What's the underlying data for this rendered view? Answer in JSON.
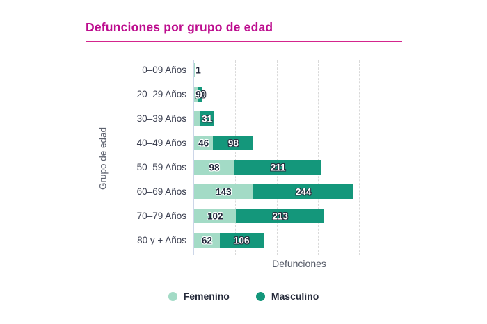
{
  "title": "Defunciones por grupo de edad",
  "colors": {
    "title": "#bd0d8e",
    "title_rule": "#d4258d",
    "femenino": "#a3dbc6",
    "masculino": "#14977b"
  },
  "chart_data": {
    "type": "bar",
    "orientation": "horizontal",
    "stacked": true,
    "title": "Defunciones por grupo de edad",
    "xlabel": "Defunciones",
    "ylabel": "Grupo de edad",
    "xlim": [
      0,
      500
    ],
    "grid": "vertical-dashed",
    "gridlines_x": [
      100,
      200,
      300,
      400,
      500
    ],
    "x_tick_labels_visible": false,
    "legend_position": "bottom",
    "categories": [
      "0–09 Años",
      "20–29 Años",
      "30–39 Años",
      "40–49 Años",
      "50–59 Años",
      "60–69 Años",
      "70–79 Años",
      "80 y + Años"
    ],
    "series": [
      {
        "name": "Femenino",
        "color": "#a3dbc6",
        "values": [
          1,
          9,
          16,
          46,
          98,
          143,
          102,
          62
        ]
      },
      {
        "name": "Masculino",
        "color": "#14977b",
        "values": [
          0,
          10,
          31,
          98,
          211,
          244,
          213,
          106
        ]
      }
    ],
    "bar_labels": [
      {
        "f": "1",
        "m": ""
      },
      {
        "f": "9",
        "m": "10"
      },
      {
        "f": "",
        "m": "31"
      },
      {
        "f": "46",
        "m": "98"
      },
      {
        "f": "98",
        "m": "211"
      },
      {
        "f": "143",
        "m": "244"
      },
      {
        "f": "102",
        "m": "213"
      },
      {
        "f": "62",
        "m": "106"
      }
    ]
  },
  "legend": {
    "items": [
      {
        "label": "Femenino",
        "color": "#a3dbc6"
      },
      {
        "label": "Masculino",
        "color": "#14977b"
      }
    ]
  }
}
